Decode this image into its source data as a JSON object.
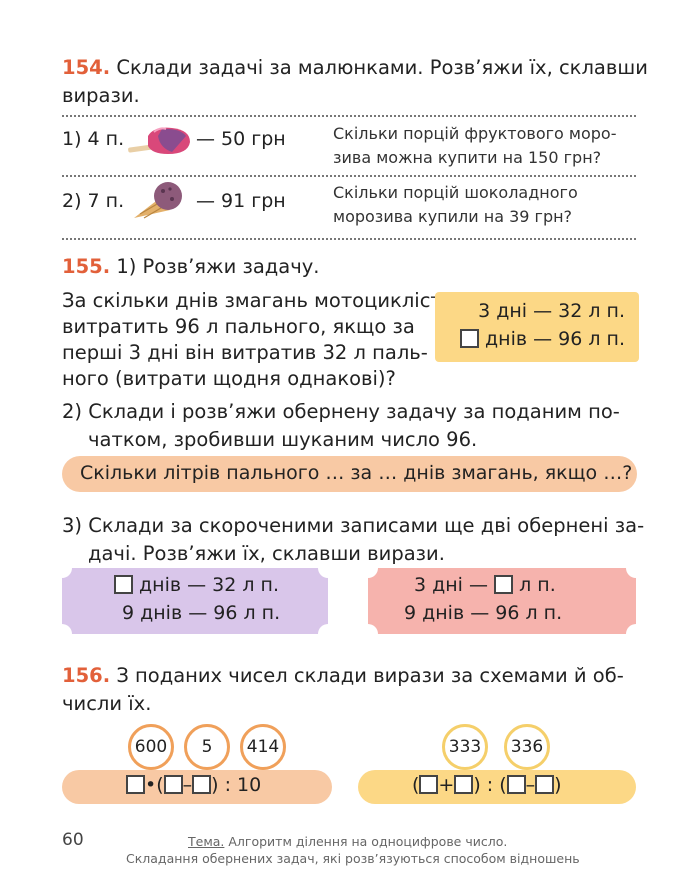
{
  "ex154": {
    "number": "154.",
    "text1": "Склади задачі за малюнками. Розв’яжи їх, склавши",
    "text2": "вирази.",
    "rows": [
      {
        "label": "1) 4 п.",
        "price": "— 50 грн",
        "q1": "Скільки порцій фруктового моро-",
        "q2": "зива можна купити на 150 грн?"
      },
      {
        "label": "2) 7 п.",
        "price": "— 91 грн",
        "q1": "Скільки порцій шоколадного",
        "q2": "морозива купили на 39 грн?"
      }
    ]
  },
  "ex155": {
    "number": "155.",
    "title": "1) Розв’яжи задачу.",
    "problem": [
      "За скільки днів змагань мотоцикліст",
      "витратить 96 л пального, якщо за",
      "перші 3 дні він витратив 32 л паль-",
      "ного (витрати щодня однакові)?"
    ],
    "box": {
      "r1": "3 дні — 32 л п.",
      "r2": "днів — 96 л п."
    },
    "part2_num": "2)",
    "part2": [
      "Склади і розв’яжи обернену задачу за поданим по-",
      "чатком, зробивши шуканим число 96."
    ],
    "banner": "Скільки літрів пального … за … днів змагань, якщо …?",
    "part3_num": "3)",
    "part3": [
      "Склади за скороченими записами ще дві обернені за-",
      "дачі. Розв’яжи їх, склавши вирази."
    ],
    "ticket_left": {
      "r1": "днів — 32 л п.",
      "r2": "9 днів — 96 л п."
    },
    "ticket_right": {
      "r1a": "3 дні —",
      "r1b": "л п.",
      "r2": "9 днів — 96 л п."
    }
  },
  "ex156": {
    "number": "156.",
    "text1": "З поданих чисел склади вирази за схемами й об-",
    "text2": "числи їх.",
    "left_numbers": [
      "600",
      "5",
      "414"
    ],
    "right_numbers": [
      "333",
      "336"
    ],
    "left_expr_tail": ") : 10",
    "right_mid": ") : ("
  },
  "footer": {
    "page": "60",
    "topic_label": "Тема.",
    "topic1": " Алгоритм ділення на одноцифрове число.",
    "topic2": "Складання обернених задач, які розв’язуються способом відношень"
  },
  "colors": {
    "accent": "#e2603a",
    "yellow": "#fcd886",
    "peach": "#f8c9a4",
    "lilac": "#d9c6ea",
    "pink": "#f6b3ad"
  }
}
